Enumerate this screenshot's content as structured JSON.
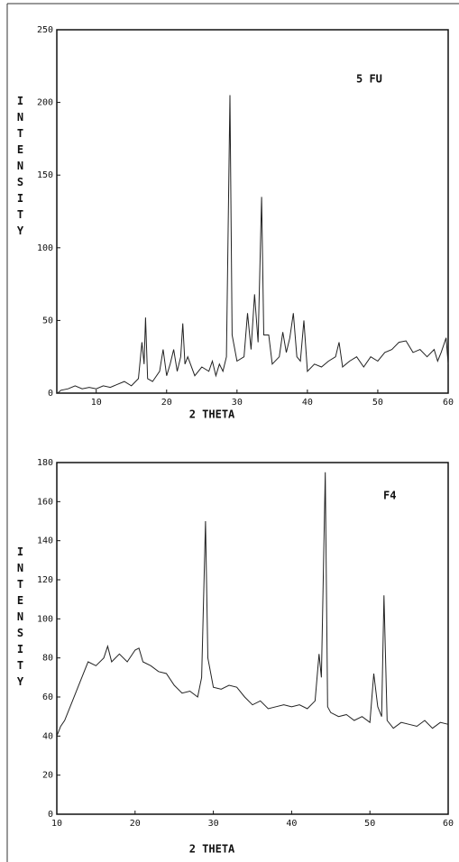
{
  "chart_data": [
    {
      "type": "line",
      "annotation": "5 FU",
      "ylabel": "INTENSITY",
      "xlabel": "2 THETA",
      "color": "#222222",
      "xlim": [
        4.4,
        60
      ],
      "ylim": [
        0,
        250
      ],
      "xticks": [
        10,
        20,
        30,
        40,
        50,
        60
      ],
      "yticks": [
        0,
        50,
        100,
        150,
        200,
        250
      ],
      "x": [
        4.5,
        5,
        6,
        7,
        8,
        9,
        10,
        11,
        12,
        13,
        14,
        15,
        16,
        16.5,
        16.8,
        17,
        17.3,
        18,
        19,
        19.5,
        20,
        20.5,
        21,
        21.5,
        22,
        22.3,
        22.6,
        23,
        24,
        25,
        26,
        26.5,
        27,
        27.5,
        28,
        28.5,
        29,
        29.3,
        30,
        31,
        31.5,
        32,
        32.5,
        33,
        33.5,
        33.8,
        34.5,
        35,
        36,
        36.5,
        37,
        37.5,
        38,
        38.5,
        39,
        39.5,
        40,
        41,
        42,
        43,
        44,
        44.5,
        45,
        46,
        47,
        48,
        49,
        50,
        51,
        52,
        53,
        54,
        55,
        56,
        57,
        58,
        58.5,
        59,
        59.7,
        60
      ],
      "values": [
        0,
        2,
        3,
        5,
        3,
        4,
        3,
        5,
        4,
        6,
        8,
        5,
        10,
        35,
        20,
        52,
        10,
        8,
        15,
        30,
        12,
        20,
        30,
        15,
        25,
        48,
        20,
        25,
        12,
        18,
        15,
        22,
        12,
        20,
        15,
        25,
        205,
        40,
        22,
        25,
        55,
        30,
        68,
        35,
        135,
        40,
        40,
        20,
        25,
        42,
        28,
        38,
        55,
        25,
        22,
        50,
        15,
        20,
        18,
        22,
        25,
        35,
        18,
        22,
        25,
        18,
        25,
        22,
        28,
        30,
        35,
        36,
        28,
        30,
        25,
        30,
        22,
        28,
        38,
        20
      ]
    },
    {
      "type": "line",
      "annotation": "F4",
      "ylabel": "INTENSITY",
      "xlabel": "2 THETA",
      "color": "#222222",
      "xlim": [
        10,
        60
      ],
      "ylim": [
        0,
        180
      ],
      "xticks": [
        10,
        20,
        30,
        40,
        50,
        60
      ],
      "yticks": [
        0,
        20,
        40,
        60,
        80,
        100,
        120,
        140,
        160,
        180
      ],
      "x": [
        10,
        10.5,
        11,
        12,
        13,
        14,
        15,
        16,
        16.5,
        17,
        18,
        19,
        20,
        20.5,
        21,
        22,
        23,
        24,
        25,
        26,
        27,
        28,
        28.5,
        29,
        29.3,
        30,
        31,
        32,
        33,
        34,
        35,
        36,
        37,
        38,
        39,
        40,
        41,
        42,
        43,
        43.5,
        43.8,
        44.3,
        44.6,
        45,
        46,
        47,
        48,
        49,
        50,
        50.5,
        51,
        51.5,
        51.8,
        52.2,
        53,
        54,
        55,
        56,
        57,
        58,
        59,
        60
      ],
      "values": [
        40,
        45,
        48,
        58,
        68,
        78,
        76,
        80,
        86,
        78,
        82,
        78,
        84,
        85,
        78,
        76,
        73,
        72,
        66,
        62,
        63,
        60,
        70,
        150,
        80,
        65,
        64,
        66,
        65,
        60,
        56,
        58,
        54,
        55,
        56,
        55,
        56,
        54,
        58,
        82,
        70,
        175,
        55,
        52,
        50,
        51,
        48,
        50,
        47,
        72,
        55,
        50,
        112,
        48,
        44,
        47,
        46,
        45,
        48,
        44,
        47,
        46
      ]
    }
  ]
}
